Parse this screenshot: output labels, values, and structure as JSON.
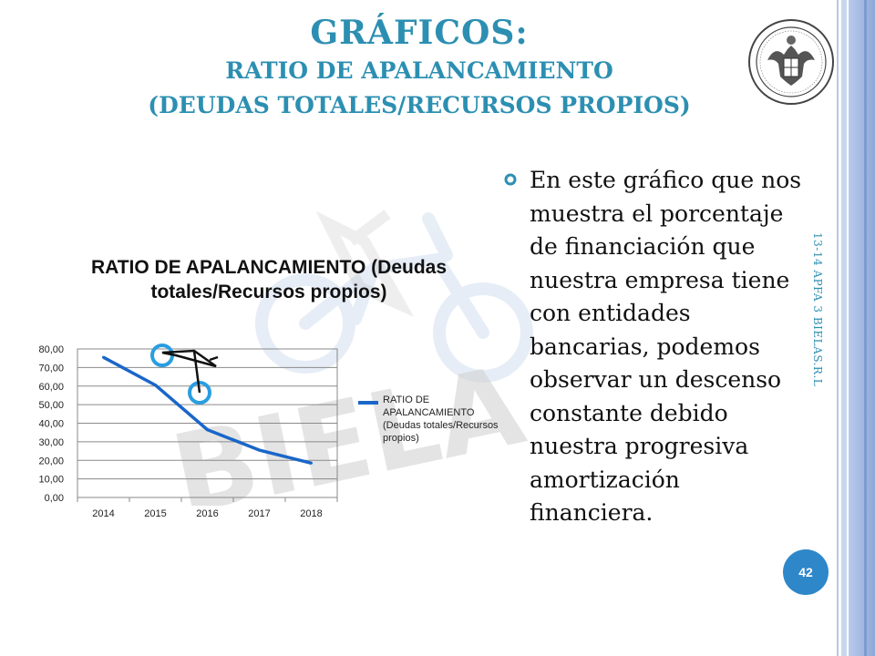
{
  "slide": {
    "title_line1": "GRÁFICOS:",
    "title_line2": "RATIO DE APALANCAMIENTO",
    "title_line3": "(DEUDAS TOTALES/RECURSOS PROPIOS)",
    "side_text": "13-14 APFA 3 BIELAS.R.L",
    "page_number": "42",
    "bullet_text": "En este gráfico que nos muestra el porcentaje de financiación que nuestra empresa tiene con entidades bancarias, podemos observar un descenso constante debido nuestra progresiva amortización financiera.",
    "watermark_text": "BIELA",
    "accent_color": "#2c8fb2",
    "badge_color": "#2d87c9"
  },
  "chart_data": {
    "type": "line",
    "title": "RATIO DE APALANCAMIENTO (Deudas totales/Recursos propios)",
    "categories": [
      "2014",
      "2015",
      "2016",
      "2017",
      "2018"
    ],
    "y_ticks": [
      "80,00",
      "70,00",
      "60,00",
      "50,00",
      "40,00",
      "30,00",
      "20,00",
      "10,00",
      "0,00"
    ],
    "ylim": [
      0,
      80
    ],
    "grid": true,
    "legend_position": "right",
    "series": [
      {
        "name": "RATIO DE APALANCAMIENTO (Deudas totales/Recursos propios)",
        "values": [
          75.5,
          60.5,
          36.5,
          25.5,
          18.5
        ],
        "color": "#1a66c9"
      }
    ]
  }
}
